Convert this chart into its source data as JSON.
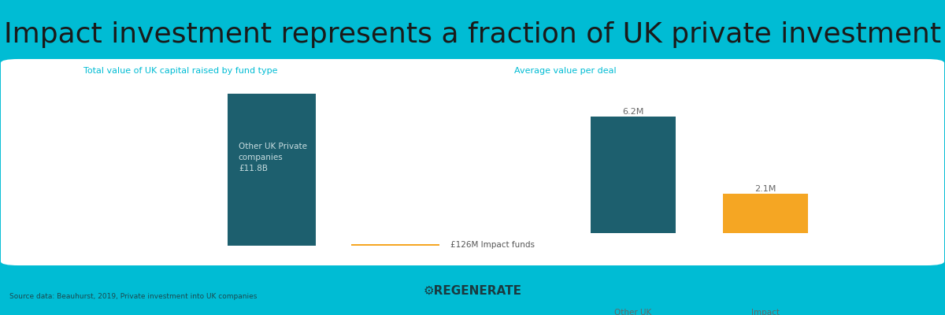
{
  "title": "Impact investment represents a fraction of UK private investment",
  "title_fontsize": 26,
  "title_color": "#1a1a1a",
  "background_color": "#00bcd4",
  "panel_color": "#ffffff",
  "chart1_title": "Total value of UK capital raised by fund type",
  "chart2_title": "Average value per deal",
  "bar1_values": [
    11800,
    126
  ],
  "bar1_colors": [
    "#1d5f6e",
    "#f5a623"
  ],
  "bar1_inner_label": "Other UK Private\ncompanies\n£11.8B",
  "bar1_outer_label": "£126M Impact funds",
  "bar2_values": [
    6.2,
    2.1
  ],
  "bar2_labels": [
    "6.2M",
    "2.1M"
  ],
  "bar2_colors": [
    "#1d5f6e",
    "#f5a623"
  ],
  "bar2_categories": [
    "Other UK\nprivate\ncompanies",
    "Impact\nfunds"
  ],
  "source_text": "Source data: Beauhurst, 2019, Private investment into UK companies",
  "regenerate_text": "⚙REGENERATE",
  "subtitle_color": "#00bcd4",
  "bar_label_color": "#666666",
  "inner_label_color": "#c8dde0"
}
